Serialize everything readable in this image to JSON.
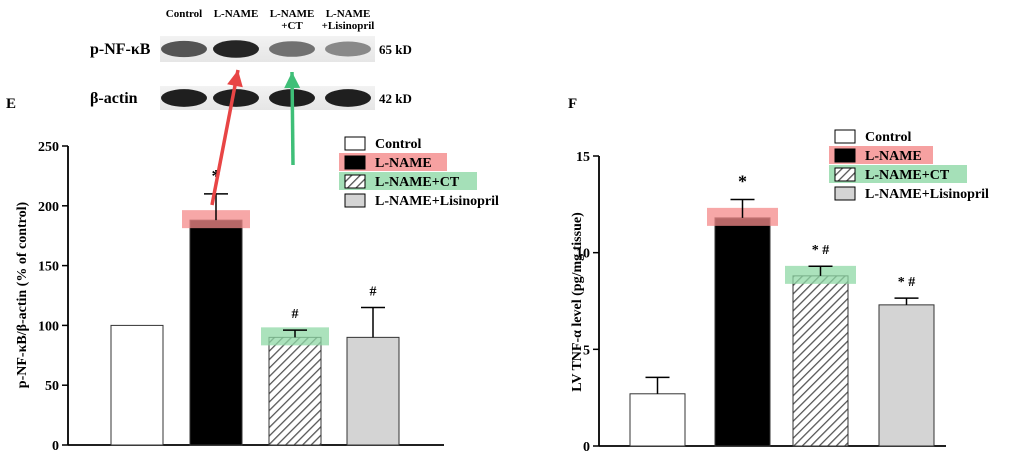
{
  "western_blot": {
    "lane_labels": [
      "Control",
      "L-NAME",
      "L-NAME",
      "L-NAME"
    ],
    "lane_sublabels": [
      "",
      "",
      "+CT",
      "+Lisinopril"
    ],
    "rows": [
      {
        "name": "p-NF-κB",
        "size": "65 kD",
        "band_intensity": [
          0.72,
          0.92,
          0.6,
          0.5
        ]
      },
      {
        "name": "β-actin",
        "size": "42 kD",
        "band_intensity": [
          0.95,
          0.95,
          0.95,
          0.95
        ]
      }
    ]
  },
  "colors": {
    "control_fill": "#ffffff",
    "lname_fill": "#000000",
    "ct_hatch": "#555555",
    "lisinopril_fill": "#d4d4d4",
    "red_highlight": "#f48a8a",
    "green_highlight": "#8fd8a6",
    "red_arrow": "#e84545",
    "green_arrow": "#3fbf78"
  },
  "chart_data": [
    {
      "panel_label": "E",
      "type": "bar",
      "categories": [
        "Control",
        "L-NAME",
        "L-NAME+CT",
        "L-NAME+Lisinopril"
      ],
      "values": [
        100,
        188,
        90,
        90
      ],
      "errors": [
        0,
        22,
        6,
        25
      ],
      "annotations": [
        "",
        "*",
        "#",
        "#"
      ],
      "ylabel": "p-NF-κB/β-actin (% of control)",
      "ylim": [
        0,
        250
      ],
      "yticks": [
        0,
        50,
        100,
        150,
        200,
        250
      ],
      "legend": [
        "Control",
        "L-NAME",
        "L-NAME+CT",
        "L-NAME+Lisinopril"
      ],
      "legend_position": "top-right"
    },
    {
      "panel_label": "F",
      "type": "bar",
      "categories": [
        "Control",
        "L-NAME",
        "L-NAME+CT",
        "L-NAME+Lisinopril"
      ],
      "values": [
        2.7,
        11.8,
        8.8,
        7.3
      ],
      "errors": [
        0.85,
        0.95,
        0.5,
        0.35
      ],
      "annotations": [
        "",
        "*",
        "* #",
        "* #"
      ],
      "ylabel": "LV TNF-α level (pg/mg tissue)",
      "ylim": [
        0,
        15
      ],
      "yticks": [
        0,
        5,
        10,
        15
      ],
      "legend": [
        "Control",
        "L-NAME",
        "L-NAME+CT",
        "L-NAME+Lisinopril"
      ],
      "legend_position": "top-right"
    }
  ]
}
